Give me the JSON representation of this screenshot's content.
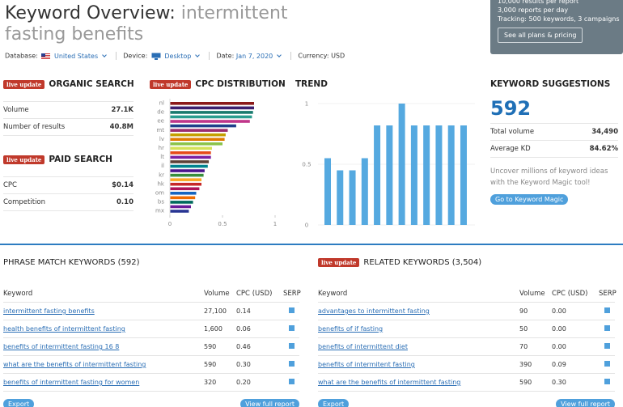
{
  "header": {
    "title": "Keyword Overview:",
    "keyword": "intermittent fasting benefits"
  },
  "filters": {
    "database_label": "Database:",
    "database": "United States",
    "device_label": "Device:",
    "device": "Desktop",
    "date_label": "Date:",
    "date": "Jan 7, 2020",
    "currency_label": "Currency:",
    "currency": "USD"
  },
  "plans": {
    "lines": [
      "10,000 results per report",
      "3,000 reports per day",
      "Tracking: 500 keywords, 3 campaigns"
    ],
    "button": "See all plans & pricing"
  },
  "badge": "live update",
  "organic_search": {
    "title": "ORGANIC SEARCH",
    "rows": [
      [
        "Volume",
        "27.1K"
      ],
      [
        "Number of results",
        "40.8M"
      ]
    ]
  },
  "paid_search": {
    "title": "PAID SEARCH",
    "rows": [
      [
        "CPC",
        "$0.14"
      ],
      [
        "Competition",
        "0.10"
      ]
    ]
  },
  "cpc_distribution": {
    "title": "CPC DISTRIBUTION",
    "type": "bar",
    "categories": [
      "nl",
      null,
      "de",
      null,
      "ee",
      null,
      "mt",
      null,
      "lv",
      null,
      "hr",
      null,
      "lt",
      null,
      "il",
      null,
      "kr",
      null,
      "hk",
      null,
      "om",
      null,
      "bs",
      null,
      "mx"
    ],
    "values": [
      0.8,
      0.8,
      0.79,
      0.78,
      0.76,
      0.63,
      0.55,
      0.53,
      0.52,
      0.5,
      0.4,
      0.39,
      0.39,
      0.37,
      0.36,
      0.33,
      0.32,
      0.3,
      0.3,
      0.28,
      0.25,
      0.24,
      0.22,
      0.2,
      0.18
    ],
    "colors": [
      "#8b1a1a",
      "#3c1f6e",
      "#1a7a6e",
      "#2a9d8f",
      "#c0368a",
      "#1f3f8a",
      "#9b2d6e",
      "#c4a000",
      "#e07b00",
      "#8bc34a",
      "#d4e157",
      "#e64a19",
      "#7b1fa2",
      "#5d4037",
      "#00838f",
      "#4a148c",
      "#388e3c",
      "#f9a825",
      "#c62828",
      "#ad1457",
      "#1565c0",
      "#ef6c00",
      "#00695c",
      "#6a1b9a",
      "#283593"
    ],
    "xlim": [
      0,
      1
    ],
    "xticks": [
      0,
      0.5,
      1
    ]
  },
  "trend": {
    "title": "TREND",
    "type": "bar",
    "values": [
      0.55,
      0.45,
      0.45,
      0.55,
      0.82,
      0.82,
      1,
      0.82,
      0.82,
      0.82,
      0.82,
      0.82
    ],
    "color": "#55a9e0",
    "ylim": [
      0,
      1
    ],
    "yticks": [
      0,
      0.5,
      1
    ],
    "grid": true
  },
  "keyword_suggestions": {
    "title": "KEYWORD SUGGESTIONS",
    "count": "592",
    "rows": [
      [
        "Total volume",
        "34,490"
      ],
      [
        "Average KD",
        "84.62%"
      ]
    ],
    "text": "Uncover millions of keyword ideas with the Keyword Magic tool!",
    "button": "Go to Keyword Magic"
  },
  "phrase_match": {
    "title": "PHRASE MATCH KEYWORDS (592)",
    "columns": [
      "Keyword",
      "Volume",
      "CPC (USD)",
      "SERP"
    ],
    "rows": [
      [
        "intermittent fasting benefits",
        "27,100",
        "0.14"
      ],
      [
        "health benefits of intermittent fasting",
        "1,600",
        "0.06"
      ],
      [
        "benefits of intermittent fasting 16 8",
        "590",
        "0.46"
      ],
      [
        "what are the benefits of intermittent fasting",
        "590",
        "0.30"
      ],
      [
        "benefits of intermittent fasting for women",
        "320",
        "0.20"
      ]
    ],
    "export": "Export",
    "view": "View full report"
  },
  "related": {
    "title": "RELATED KEYWORDS (3,504)",
    "columns": [
      "Keyword",
      "Volume",
      "CPC (USD)",
      "SERP"
    ],
    "rows": [
      [
        "advantages to intermittent fasting",
        "90",
        "0.00"
      ],
      [
        "benefits of if fasting",
        "50",
        "0.00"
      ],
      [
        "benefits of intermittent diet",
        "70",
        "0.00"
      ],
      [
        "benefits of intermitent fasting",
        "390",
        "0.09"
      ],
      [
        "what are the benefits of intermittent fasting",
        "590",
        "0.30"
      ]
    ],
    "export": "Export",
    "view": "View full report"
  }
}
